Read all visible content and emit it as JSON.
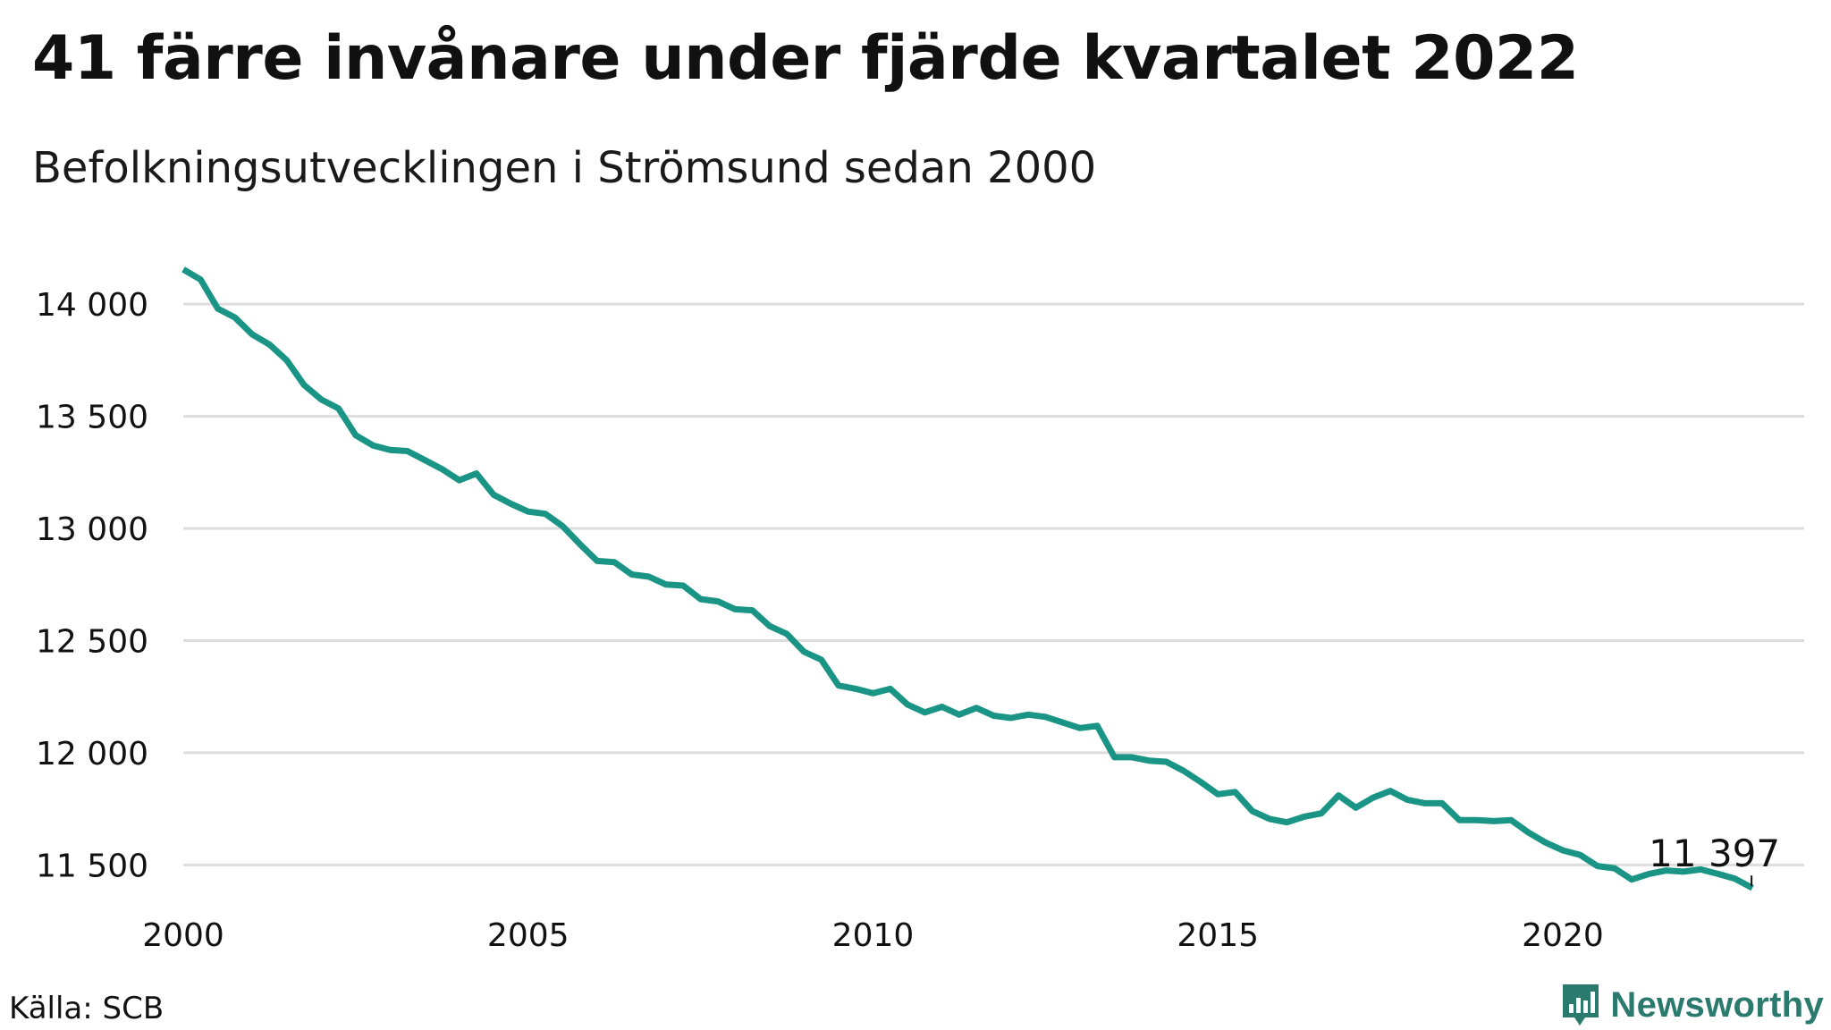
{
  "title": "41 färre invånare under fjärde kvartalet 2022",
  "subtitle": "Befolkningsutvecklingen i Strömsund sedan 2000",
  "source": "Källa: SCB",
  "brand": {
    "name": "Newsworthy",
    "logo_icon": "bar-chart-speech-bubble-icon",
    "color": "#2b7a6e"
  },
  "chart_data": {
    "type": "line",
    "x_min": 2000,
    "x_max": 2023.5,
    "ylim": [
      11350,
      14200
    ],
    "grid": true,
    "line_color": "#1a9484",
    "grid_color": "#dddddd",
    "y_ticks": [
      {
        "value": 14000,
        "label": "14 000"
      },
      {
        "value": 13500,
        "label": "13 500"
      },
      {
        "value": 13000,
        "label": "13 000"
      },
      {
        "value": 12500,
        "label": "12 500"
      },
      {
        "value": 12000,
        "label": "12 000"
      },
      {
        "value": 11500,
        "label": "11 500"
      }
    ],
    "x_ticks": [
      {
        "value": 2000,
        "label": "2000"
      },
      {
        "value": 2005,
        "label": "2005"
      },
      {
        "value": 2010,
        "label": "2010"
      },
      {
        "value": 2015,
        "label": "2015"
      },
      {
        "value": 2020,
        "label": "2020"
      }
    ],
    "series": [
      {
        "values": [
          [
            2000.0,
            14155
          ],
          [
            2000.25,
            14110
          ],
          [
            2000.5,
            13980
          ],
          [
            2000.75,
            13940
          ],
          [
            2001.0,
            13865
          ],
          [
            2001.25,
            13820
          ],
          [
            2001.5,
            13750
          ],
          [
            2001.75,
            13640
          ],
          [
            2002.0,
            13575
          ],
          [
            2002.25,
            13535
          ],
          [
            2002.5,
            13415
          ],
          [
            2002.75,
            13370
          ],
          [
            2003.0,
            13350
          ],
          [
            2003.25,
            13345
          ],
          [
            2003.5,
            13305
          ],
          [
            2003.75,
            13265
          ],
          [
            2004.0,
            13215
          ],
          [
            2004.25,
            13245
          ],
          [
            2004.5,
            13150
          ],
          [
            2004.75,
            13110
          ],
          [
            2005.0,
            13075
          ],
          [
            2005.25,
            13065
          ],
          [
            2005.5,
            13010
          ],
          [
            2005.75,
            12930
          ],
          [
            2006.0,
            12855
          ],
          [
            2006.25,
            12850
          ],
          [
            2006.5,
            12795
          ],
          [
            2006.75,
            12785
          ],
          [
            2007.0,
            12750
          ],
          [
            2007.25,
            12745
          ],
          [
            2007.5,
            12685
          ],
          [
            2007.75,
            12675
          ],
          [
            2008.0,
            12640
          ],
          [
            2008.25,
            12635
          ],
          [
            2008.5,
            12565
          ],
          [
            2008.75,
            12530
          ],
          [
            2009.0,
            12450
          ],
          [
            2009.25,
            12415
          ],
          [
            2009.5,
            12300
          ],
          [
            2009.75,
            12285
          ],
          [
            2010.0,
            12265
          ],
          [
            2010.25,
            12285
          ],
          [
            2010.5,
            12215
          ],
          [
            2010.75,
            12180
          ],
          [
            2011.0,
            12205
          ],
          [
            2011.25,
            12170
          ],
          [
            2011.5,
            12200
          ],
          [
            2011.75,
            12165
          ],
          [
            2012.0,
            12155
          ],
          [
            2012.25,
            12170
          ],
          [
            2012.5,
            12160
          ],
          [
            2012.75,
            12135
          ],
          [
            2013.0,
            12110
          ],
          [
            2013.25,
            12120
          ],
          [
            2013.5,
            11980
          ],
          [
            2013.75,
            11980
          ],
          [
            2014.0,
            11965
          ],
          [
            2014.25,
            11960
          ],
          [
            2014.5,
            11920
          ],
          [
            2014.75,
            11870
          ],
          [
            2015.0,
            11815
          ],
          [
            2015.25,
            11825
          ],
          [
            2015.5,
            11740
          ],
          [
            2015.75,
            11705
          ],
          [
            2016.0,
            11690
          ],
          [
            2016.25,
            11715
          ],
          [
            2016.5,
            11730
          ],
          [
            2016.75,
            11810
          ],
          [
            2017.0,
            11755
          ],
          [
            2017.25,
            11800
          ],
          [
            2017.5,
            11830
          ],
          [
            2017.75,
            11790
          ],
          [
            2018.0,
            11775
          ],
          [
            2018.25,
            11775
          ],
          [
            2018.5,
            11700
          ],
          [
            2018.75,
            11700
          ],
          [
            2019.0,
            11695
          ],
          [
            2019.25,
            11700
          ],
          [
            2019.5,
            11645
          ],
          [
            2019.75,
            11600
          ],
          [
            2020.0,
            11565
          ],
          [
            2020.25,
            11545
          ],
          [
            2020.5,
            11495
          ],
          [
            2020.75,
            11485
          ],
          [
            2021.0,
            11435
          ],
          [
            2021.25,
            11460
          ],
          [
            2021.5,
            11475
          ],
          [
            2021.75,
            11470
          ],
          [
            2022.0,
            11480
          ],
          [
            2022.25,
            11460
          ],
          [
            2022.5,
            11438
          ],
          [
            2022.75,
            11397
          ]
        ]
      }
    ],
    "annotations": [
      {
        "x": 2022.75,
        "y": 11397,
        "label": "11 397"
      }
    ]
  }
}
